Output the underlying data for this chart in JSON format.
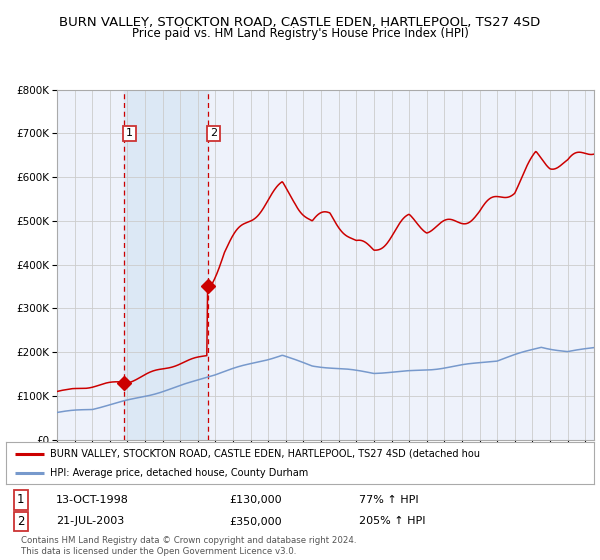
{
  "title": "BURN VALLEY, STOCKTON ROAD, CASTLE EDEN, HARTLEPOOL, TS27 4SD",
  "subtitle": "Price paid vs. HM Land Registry's House Price Index (HPI)",
  "legend_line1": "BURN VALLEY, STOCKTON ROAD, CASTLE EDEN, HARTLEPOOL, TS27 4SD (detached hou",
  "legend_line2": "HPI: Average price, detached house, County Durham",
  "footer": "Contains HM Land Registry data © Crown copyright and database right 2024.\nThis data is licensed under the Open Government Licence v3.0.",
  "sale1_date": "13-OCT-1998",
  "sale1_price": "£130,000",
  "sale1_hpi": "77% ↑ HPI",
  "sale2_date": "21-JUL-2003",
  "sale2_price": "£350,000",
  "sale2_hpi": "205% ↑ HPI",
  "sale1_year": 1998.78,
  "sale1_value": 130000,
  "sale2_year": 2003.55,
  "sale2_value": 350000,
  "ylim": [
    0,
    800000
  ],
  "xlim_start": 1995,
  "xlim_end": 2025.5,
  "background_color": "#ffffff",
  "plot_bg_color": "#eef2fb",
  "grid_color": "#cccccc",
  "red_line_color": "#cc0000",
  "blue_line_color": "#7799cc",
  "shade_color": "#dce8f5",
  "vline_color": "#cc0000",
  "label_box_color": "#cc3333"
}
